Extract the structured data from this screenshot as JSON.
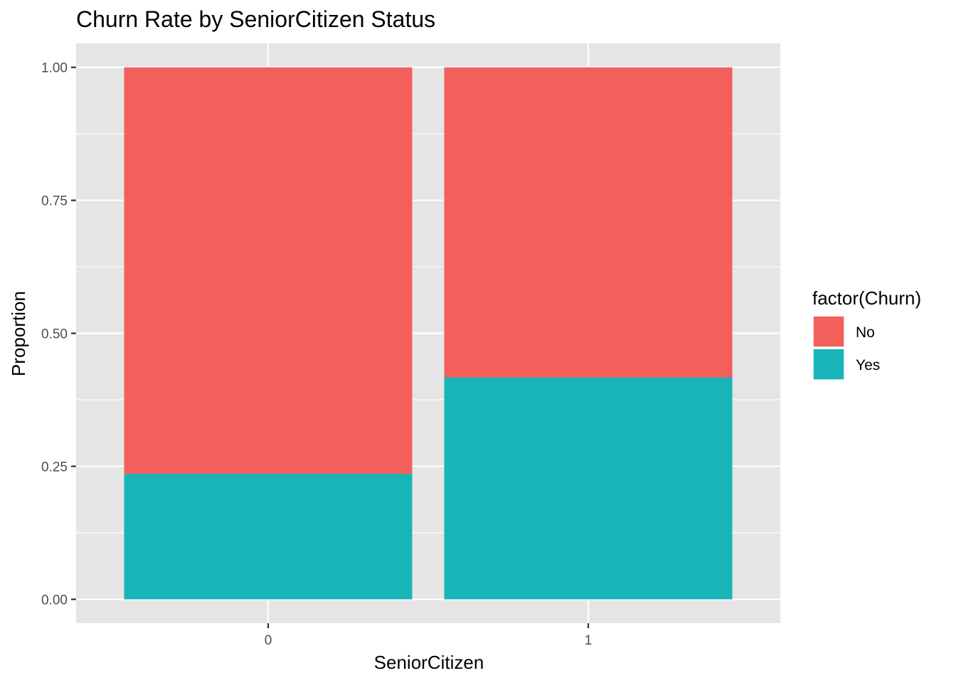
{
  "chart_data": {
    "type": "bar",
    "stacked": true,
    "title": "Churn Rate by SeniorCitizen Status",
    "xlabel": "SeniorCitizen",
    "ylabel": "Proportion",
    "categories": [
      "0",
      "1"
    ],
    "series": [
      {
        "name": "No",
        "color": "#F35F5B",
        "values": [
          0.764,
          0.583
        ]
      },
      {
        "name": "Yes",
        "color": "#19B4B8",
        "values": [
          0.236,
          0.417
        ]
      }
    ],
    "ylim": [
      -0.045,
      1.045
    ],
    "yticks": [
      0.0,
      0.25,
      0.5,
      0.75,
      1.0
    ],
    "ytick_labels": [
      "0.00",
      "0.25",
      "0.50",
      "0.75",
      "1.00"
    ],
    "grid": true,
    "panel_background": "#E5E5E5",
    "grid_color": "#FFFFFF",
    "legend": {
      "title": "factor(Churn)",
      "position": "right",
      "entries": [
        "No",
        "Yes"
      ]
    }
  }
}
